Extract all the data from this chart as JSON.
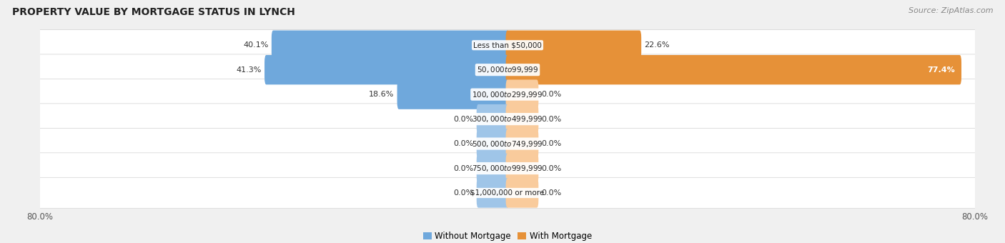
{
  "title": "PROPERTY VALUE BY MORTGAGE STATUS IN LYNCH",
  "source": "Source: ZipAtlas.com",
  "categories": [
    "Less than $50,000",
    "$50,000 to $99,999",
    "$100,000 to $299,999",
    "$300,000 to $499,999",
    "$500,000 to $749,999",
    "$750,000 to $999,999",
    "$1,000,000 or more"
  ],
  "without_mortgage": [
    40.1,
    41.3,
    18.6,
    0.0,
    0.0,
    0.0,
    0.0
  ],
  "with_mortgage": [
    22.6,
    77.4,
    0.0,
    0.0,
    0.0,
    0.0,
    0.0
  ],
  "xlim": 80.0,
  "bar_height": 0.6,
  "without_color": "#6fa8dc",
  "with_color": "#e69138",
  "without_color_zero": "#9fc5e8",
  "with_color_zero": "#f9cb9c",
  "row_bg_color": "#f3f3f3",
  "row_border_color": "#d0d0d0",
  "title_fontsize": 10,
  "axis_fontsize": 8.5,
  "bar_label_fontsize": 8,
  "cat_label_fontsize": 7.5,
  "legend_fontsize": 8.5,
  "source_fontsize": 8,
  "zero_stub": 5.0
}
